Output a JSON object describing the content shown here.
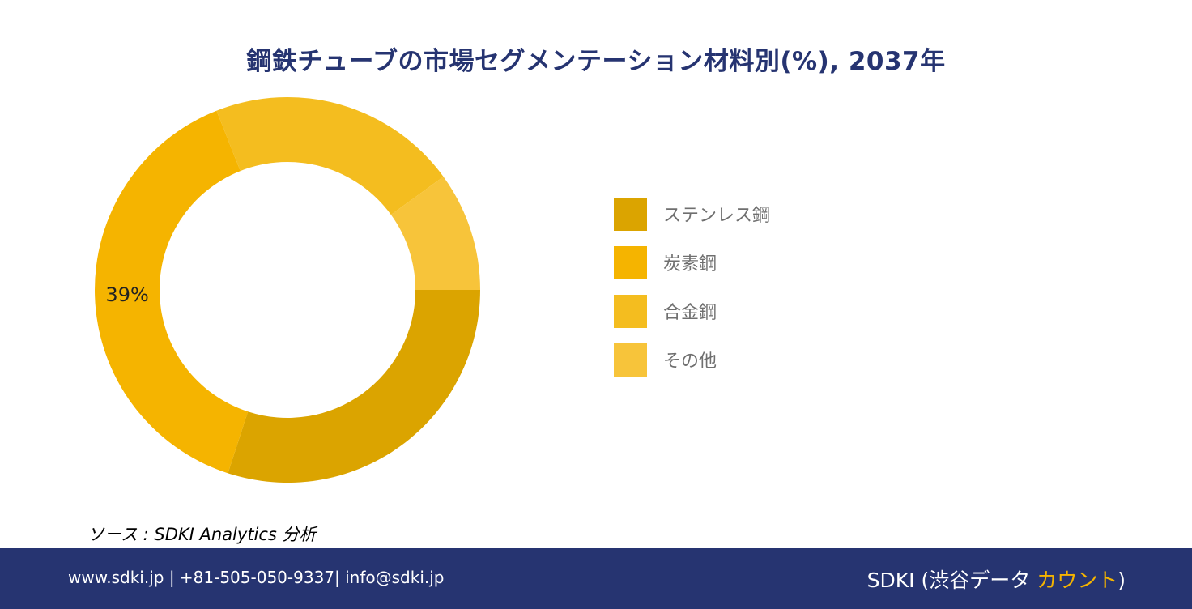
{
  "chart_data": {
    "type": "pie",
    "title": "鋼鉄チューブの市場セグメンテーション材料別(%), 2037年",
    "categories": [
      "ステンレス鋼",
      "炭素鋼",
      "合金鋼",
      "その他"
    ],
    "values": [
      30,
      39,
      21,
      10
    ],
    "colors": [
      "#dba400",
      "#f5b400",
      "#f4bd1f",
      "#f7c43a"
    ],
    "data_labels": [
      "",
      "39%",
      "",
      ""
    ],
    "legend_position": "right"
  },
  "source_text": "ソース : SDKI Analytics 分析",
  "footer": {
    "contact": "www.sdki.jp | +81-505-050-9337| info@sdki.jp",
    "brand_main": "SDKI (渋谷データ ",
    "brand_accent": "カウント",
    "brand_close": ")"
  }
}
